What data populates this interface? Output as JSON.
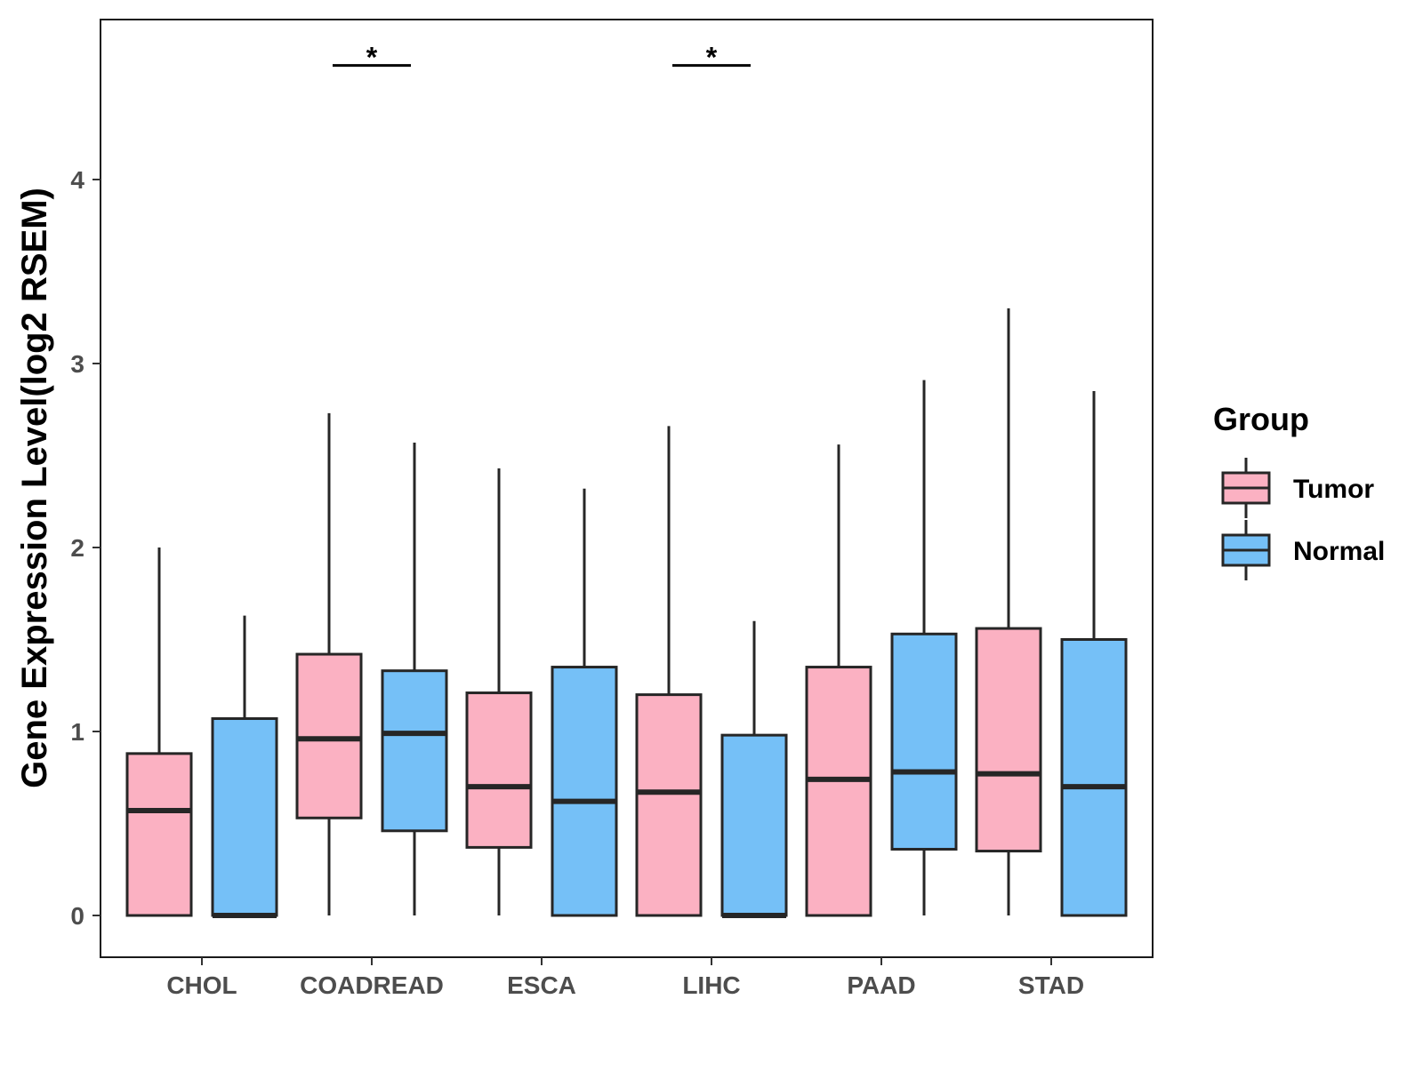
{
  "chart_data": {
    "type": "box",
    "title": "",
    "xlabel": "",
    "ylabel": "Gene Expression Level(log2 RSEM)",
    "ylim": [
      -0.22,
      4.87
    ],
    "yticks": [
      0,
      1,
      2,
      3,
      4
    ],
    "ytick_labels": [
      "0",
      "1",
      "2",
      "3",
      "4"
    ],
    "grid": false,
    "categories": [
      "CHOL",
      "COADREAD",
      "ESCA",
      "LIHC",
      "PAAD",
      "STAD"
    ],
    "legend": {
      "title": "Group",
      "position": "right",
      "entries": [
        {
          "name": "Tumor",
          "color": "#FBB1C2"
        },
        {
          "name": "Normal",
          "color": "#75C0F7"
        }
      ]
    },
    "series": [
      {
        "name": "Tumor",
        "color": "#FBB1C2",
        "boxes": [
          {
            "min": 0.0,
            "q1": 0.0,
            "median": 0.57,
            "q3": 0.88,
            "max": 2.0
          },
          {
            "min": 0.0,
            "q1": 0.53,
            "median": 0.96,
            "q3": 1.42,
            "max": 2.73
          },
          {
            "min": 0.0,
            "q1": 0.37,
            "median": 0.7,
            "q3": 1.21,
            "max": 2.43
          },
          {
            "min": 0.0,
            "q1": 0.0,
            "median": 0.67,
            "q3": 1.2,
            "max": 2.66
          },
          {
            "min": 0.0,
            "q1": 0.0,
            "median": 0.74,
            "q3": 1.35,
            "max": 2.56
          },
          {
            "min": 0.0,
            "q1": 0.35,
            "median": 0.77,
            "q3": 1.56,
            "max": 3.3
          }
        ]
      },
      {
        "name": "Normal",
        "color": "#75C0F7",
        "boxes": [
          {
            "min": 0.0,
            "q1": 0.0,
            "median": 0.0,
            "q3": 1.07,
            "max": 1.63
          },
          {
            "min": 0.0,
            "q1": 0.46,
            "median": 0.99,
            "q3": 1.33,
            "max": 2.57
          },
          {
            "min": 0.0,
            "q1": 0.0,
            "median": 0.62,
            "q3": 1.35,
            "max": 2.32
          },
          {
            "min": 0.0,
            "q1": 0.0,
            "median": 0.0,
            "q3": 0.98,
            "max": 1.6
          },
          {
            "min": 0.0,
            "q1": 0.36,
            "median": 0.78,
            "q3": 1.53,
            "max": 2.91
          },
          {
            "min": 0.0,
            "q1": 0.0,
            "median": 0.7,
            "q3": 1.5,
            "max": 2.85
          }
        ]
      }
    ],
    "annotations": [
      {
        "category": "COADREAD",
        "label": "*",
        "y": 4.62
      },
      {
        "category": "LIHC",
        "label": "*",
        "y": 4.62
      }
    ]
  }
}
